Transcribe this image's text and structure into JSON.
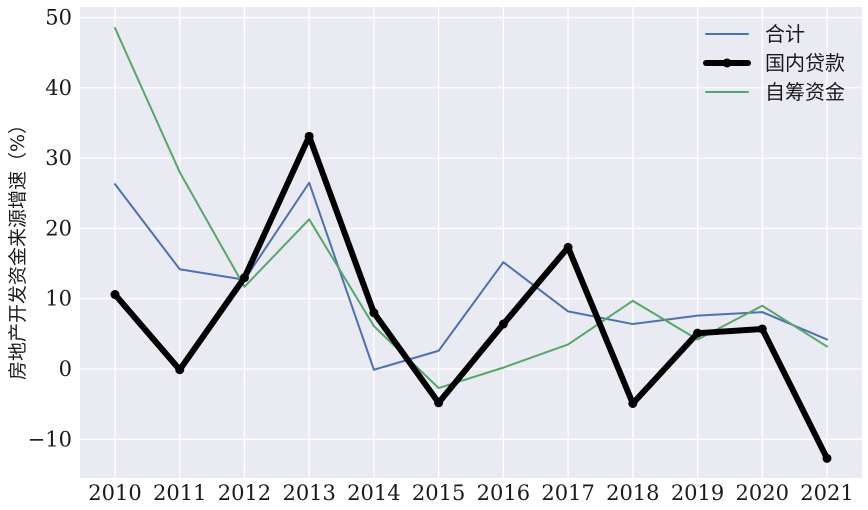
{
  "chart_data": {
    "type": "line",
    "title": "",
    "xlabel": "",
    "ylabel": "房地产开发资金来源增速（%）",
    "categories": [
      "2010",
      "2011",
      "2012",
      "2013",
      "2014",
      "2015",
      "2016",
      "2017",
      "2018",
      "2019",
      "2020",
      "2021"
    ],
    "ylim": [
      -15.5,
      51.5
    ],
    "yticks": [
      -10,
      0,
      10,
      20,
      30,
      40,
      50
    ],
    "ytick_labels": [
      "−10",
      "0",
      "10",
      "20",
      "30",
      "40",
      "50"
    ],
    "grid": true,
    "legend_position": "top-right",
    "background": "#EAEAF2",
    "series": [
      {
        "name": "合计",
        "color": "#4C72B0",
        "style": "thin",
        "markers": false,
        "values": [
          26.3,
          14.2,
          12.7,
          26.5,
          -0.1,
          2.6,
          15.2,
          8.2,
          6.4,
          7.6,
          8.1,
          4.2
        ]
      },
      {
        "name": "国内贷款",
        "color": "#000000",
        "style": "thick",
        "markers": true,
        "values": [
          10.6,
          -0.1,
          13.0,
          33.1,
          8.0,
          -4.8,
          6.4,
          17.3,
          -4.9,
          5.1,
          5.7,
          -12.7
        ]
      },
      {
        "name": "自筹资金",
        "color": "#55A868",
        "style": "thin",
        "markers": false,
        "values": [
          48.5,
          28.0,
          11.7,
          21.3,
          6.1,
          -2.7,
          0.2,
          3.5,
          9.7,
          4.2,
          9.0,
          3.2
        ]
      }
    ]
  }
}
